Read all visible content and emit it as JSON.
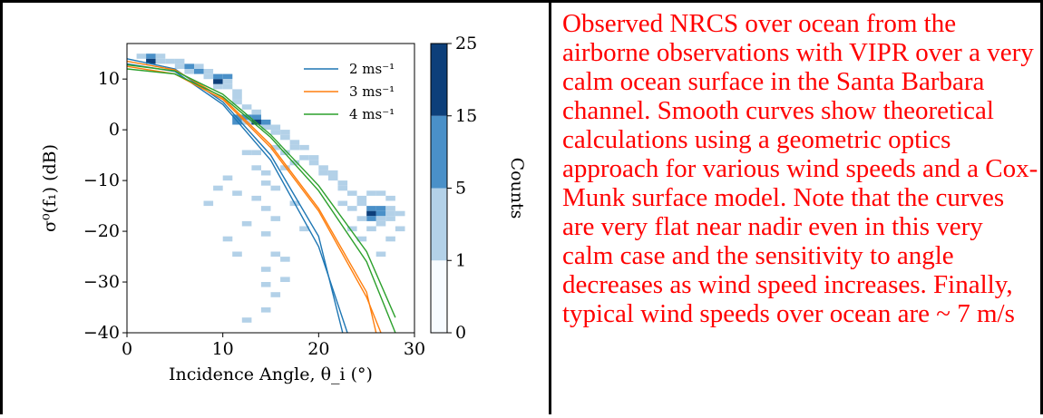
{
  "chart_data": {
    "type": "heatmap",
    "xlabel": "Incidence Angle, θ_i (°)",
    "ylabel": "σ⁰(f₁) (dB)",
    "xlim": [
      0,
      30
    ],
    "ylim": [
      -40,
      17
    ],
    "xticks": [
      0,
      10,
      20,
      30
    ],
    "yticks": [
      10,
      0,
      -10,
      -20,
      -30,
      -40
    ],
    "colorbar": {
      "label": "Counts",
      "ticks": [
        0,
        1,
        5,
        15,
        25
      ],
      "bins": [
        {
          "from": 0,
          "to": 1,
          "color": "#f7fbff"
        },
        {
          "from": 1,
          "to": 5,
          "color": "#b3d1e8"
        },
        {
          "from": 5,
          "to": 15,
          "color": "#4a90c8"
        },
        {
          "from": 15,
          "to": 25,
          "color": "#0d3f7a"
        }
      ]
    },
    "legend": {
      "placement": "top-right",
      "entries": [
        {
          "label": "2 ms⁻¹",
          "color": "#1f77b4"
        },
        {
          "label": "3 ms⁻¹",
          "color": "#ff7f0e"
        },
        {
          "label": "4 ms⁻¹",
          "color": "#2ca02c"
        }
      ]
    },
    "series": [
      {
        "name": "2 ms⁻¹",
        "color": "#1f77b4",
        "curves": [
          [
            [
              0,
              13.0
            ],
            [
              5,
              11.5
            ],
            [
              10,
              5.0
            ],
            [
              15,
              -6.0
            ],
            [
              20,
              -23.0
            ],
            [
              23,
              -40.0
            ]
          ],
          [
            [
              0,
              14.0
            ],
            [
              5,
              12.0
            ],
            [
              10,
              5.5
            ],
            [
              15,
              -5.0
            ],
            [
              20,
              -21.0
            ],
            [
              22.5,
              -40.0
            ]
          ]
        ]
      },
      {
        "name": "3 ms⁻¹",
        "color": "#ff7f0e",
        "curves": [
          [
            [
              0,
              12.5
            ],
            [
              5,
              11.0
            ],
            [
              10,
              6.0
            ],
            [
              15,
              -3.5
            ],
            [
              20,
              -16.0
            ],
            [
              25,
              -33.0
            ],
            [
              26.5,
              -40.0
            ]
          ],
          [
            [
              0,
              13.5
            ],
            [
              5,
              11.8
            ],
            [
              10,
              6.3
            ],
            [
              15,
              -3.0
            ],
            [
              20,
              -15.5
            ],
            [
              25,
              -32.0
            ],
            [
              26,
              -40.0
            ]
          ]
        ]
      },
      {
        "name": "4 ms⁻¹",
        "color": "#2ca02c",
        "curves": [
          [
            [
              0,
              12.0
            ],
            [
              5,
              11.0
            ],
            [
              10,
              6.5
            ],
            [
              15,
              -1.5
            ],
            [
              20,
              -12.0
            ],
            [
              25,
              -26.0
            ],
            [
              28,
              -40.0
            ]
          ],
          [
            [
              0,
              12.8
            ],
            [
              5,
              11.6
            ],
            [
              10,
              7.0
            ],
            [
              15,
              -1.0
            ],
            [
              20,
              -11.0
            ],
            [
              25,
              -24.0
            ],
            [
              28,
              -37.0
            ]
          ]
        ]
      }
    ],
    "cells": [
      [
        1,
        14,
        3
      ],
      [
        2,
        14,
        12
      ],
      [
        2,
        13,
        20
      ],
      [
        3,
        14,
        4
      ],
      [
        3,
        13,
        3
      ],
      [
        4,
        13,
        3
      ],
      [
        5,
        12,
        4
      ],
      [
        5,
        13,
        3
      ],
      [
        6,
        12,
        6
      ],
      [
        6,
        11,
        2
      ],
      [
        7,
        12,
        3
      ],
      [
        7,
        11,
        6
      ],
      [
        8,
        11,
        4
      ],
      [
        8,
        10,
        3
      ],
      [
        9,
        10,
        8
      ],
      [
        9,
        9,
        20
      ],
      [
        10,
        10,
        6
      ],
      [
        10,
        8,
        4
      ],
      [
        10,
        9,
        3
      ],
      [
        9,
        8,
        2
      ],
      [
        11,
        7,
        3
      ],
      [
        11,
        5,
        4
      ],
      [
        11,
        6,
        2
      ],
      [
        12,
        4,
        3
      ],
      [
        11,
        1,
        10
      ],
      [
        11,
        2,
        6
      ],
      [
        12,
        2,
        5
      ],
      [
        12,
        1,
        3
      ],
      [
        13,
        2,
        8
      ],
      [
        13,
        3,
        4
      ],
      [
        13,
        1,
        20
      ],
      [
        14,
        1,
        6
      ],
      [
        14,
        0,
        3
      ],
      [
        15,
        0,
        4
      ],
      [
        15,
        -1,
        3
      ],
      [
        16,
        -1,
        3
      ],
      [
        16,
        -2,
        2
      ],
      [
        17,
        -3,
        3
      ],
      [
        17,
        -4,
        4
      ],
      [
        18,
        -4,
        3
      ],
      [
        18,
        -6,
        2
      ],
      [
        19,
        -6,
        3
      ],
      [
        19,
        -7,
        4
      ],
      [
        20,
        -8,
        3
      ],
      [
        20,
        -9,
        2
      ],
      [
        21,
        -9,
        3
      ],
      [
        21,
        -10,
        2
      ],
      [
        22,
        -11,
        3
      ],
      [
        22,
        -12,
        2
      ],
      [
        23,
        -13,
        3
      ],
      [
        24,
        -14,
        2
      ],
      [
        24,
        -15,
        3
      ],
      [
        25,
        -16,
        10
      ],
      [
        25,
        -17,
        20
      ],
      [
        26,
        -17,
        8
      ],
      [
        26,
        -16,
        6
      ],
      [
        25,
        -18,
        6
      ],
      [
        26,
        -18,
        3
      ],
      [
        27,
        -17,
        2
      ],
      [
        27,
        -18,
        3
      ],
      [
        24,
        -18,
        2
      ],
      [
        25,
        -20,
        2
      ],
      [
        26,
        -19,
        2
      ],
      [
        22,
        -15,
        2
      ],
      [
        23,
        -16,
        2
      ],
      [
        23,
        -20,
        2
      ],
      [
        24,
        -22,
        2
      ],
      [
        26,
        -13,
        3
      ],
      [
        27,
        -14,
        2
      ],
      [
        27,
        -16,
        3
      ],
      [
        28,
        -17,
        2
      ],
      [
        26,
        -25,
        2
      ],
      [
        27,
        -22,
        2
      ],
      [
        28,
        -20,
        2
      ],
      [
        25,
        -13,
        2
      ],
      [
        12,
        -5,
        2
      ],
      [
        13,
        -5,
        2
      ],
      [
        13,
        -8,
        2
      ],
      [
        14,
        -9,
        2
      ],
      [
        14,
        -11,
        2
      ],
      [
        13,
        -14,
        2
      ],
      [
        14,
        -16,
        2
      ],
      [
        15,
        -12,
        2
      ],
      [
        15,
        -18,
        2
      ],
      [
        14,
        -21,
        2
      ],
      [
        15,
        -25,
        2
      ],
      [
        14,
        -28,
        2
      ],
      [
        14,
        -31,
        2
      ],
      [
        15,
        -33,
        2
      ],
      [
        14,
        -36,
        2
      ],
      [
        16,
        -26,
        2
      ],
      [
        16,
        -8,
        2
      ],
      [
        12,
        -19,
        2
      ],
      [
        11,
        -13,
        2
      ],
      [
        10,
        -10,
        2
      ],
      [
        10,
        -22,
        2
      ],
      [
        9,
        -12,
        2
      ],
      [
        8,
        -15,
        2
      ],
      [
        11,
        -25,
        2
      ],
      [
        16,
        -30,
        2
      ],
      [
        12,
        -38,
        2
      ],
      [
        17,
        -15,
        2
      ],
      [
        18,
        -20,
        2
      ],
      [
        15,
        -4,
        2
      ],
      [
        16,
        -5,
        2
      ],
      [
        17,
        -7,
        2
      ]
    ]
  },
  "caption": "Observed NRCS over ocean from the airborne observations with VIPR over a very calm ocean surface in the Santa Barbara channel. Smooth curves show theoretical calculations using a geometric optics approach for various wind speeds and a Cox-Munk surface model. Note that the curves are very flat near nadir even in this very calm case and the sensitivity to angle decreases as wind speed increases. Finally, typical wind speeds over ocean are ~ 7 m/s"
}
